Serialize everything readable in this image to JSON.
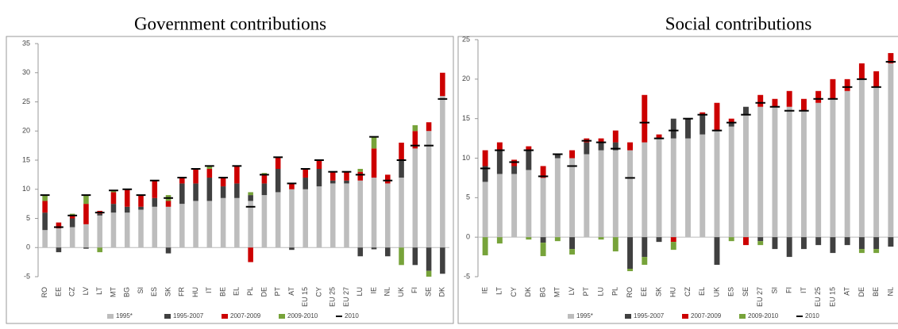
{
  "chart_data": [
    {
      "type": "stacked_bar",
      "title": "Government contributions",
      "categories": [
        "RO",
        "EE",
        "CZ",
        "LV",
        "LT",
        "MT",
        "BG",
        "SI",
        "ES",
        "SK",
        "FR",
        "HU",
        "IT",
        "BE",
        "EL",
        "PL",
        "DE",
        "PT",
        "AT",
        "EU 15",
        "CY",
        "EU 25",
        "EU 27",
        "LU",
        "IE",
        "NL",
        "UK",
        "FI",
        "SE",
        "DK"
      ],
      "series": [
        {
          "name": "1995*",
          "color": "#bdbdbd",
          "values": [
            3,
            3.3,
            3.5,
            4,
            5.5,
            6,
            6,
            6.5,
            7,
            7,
            7.5,
            8,
            8,
            8.5,
            8.5,
            8,
            9,
            9.5,
            10,
            10,
            10.5,
            11,
            11,
            11.5,
            12,
            11,
            12,
            17,
            20,
            26
          ]
        },
        {
          "name": "1995-2007",
          "color": "#404040",
          "values": [
            3,
            -0.8,
            1.5,
            -0.2,
            0.3,
            1.5,
            1,
            0.5,
            1.5,
            -1,
            3.5,
            3,
            4,
            2,
            2.5,
            1,
            2,
            4,
            -0.4,
            2,
            3,
            0.5,
            0.5,
            -1.5,
            -0.3,
            -1.5,
            3,
            -3,
            -4,
            -4.5
          ]
        },
        {
          "name": "2007-2009",
          "color": "#cc0000",
          "values": [
            2,
            1,
            0.5,
            3.5,
            0.5,
            2,
            3,
            2,
            3,
            1,
            1,
            2.5,
            1.5,
            1.5,
            3,
            -2.5,
            1.5,
            2,
            1,
            1.5,
            1.5,
            1.5,
            1.5,
            1.5,
            5,
            1.5,
            3,
            3,
            1.5,
            4
          ]
        },
        {
          "name": "2009-2010",
          "color": "#77a33a",
          "values": [
            1,
            0,
            0.3,
            1.5,
            -0.8,
            0.3,
            0,
            0,
            0,
            1,
            0,
            0,
            0.5,
            0,
            0,
            0.5,
            0.3,
            0,
            0,
            0,
            0,
            0,
            0,
            0.5,
            2,
            0,
            -3,
            1,
            -1,
            0
          ]
        },
        {
          "name": "2010",
          "color": "#000000",
          "kind": "marker",
          "values": [
            9,
            3.5,
            5.5,
            9,
            6,
            9.8,
            10,
            9,
            11.5,
            8.5,
            12,
            13.5,
            14,
            12,
            14,
            7,
            12.5,
            15.5,
            11,
            13.5,
            15,
            13,
            13,
            12.5,
            19,
            11.5,
            15,
            17.5,
            17.5,
            25.5
          ]
        }
      ],
      "ylim": [
        -5,
        35
      ],
      "yticks": [
        -5,
        0,
        5,
        10,
        15,
        20,
        25,
        30,
        35
      ],
      "grid": false
    },
    {
      "type": "stacked_bar",
      "title": "Social contributions",
      "categories": [
        "IE",
        "LT",
        "CY",
        "DK",
        "BG",
        "MT",
        "LV",
        "PT",
        "LU",
        "PL",
        "RO",
        "EE",
        "SK",
        "HU",
        "CZ",
        "EL",
        "UK",
        "ES",
        "SE",
        "EU 27",
        "SI",
        "FI",
        "IT",
        "EU 25",
        "EU 15",
        "AT",
        "DE",
        "BE",
        "NL"
      ],
      "series": [
        {
          "name": "1995*",
          "color": "#bdbdbd",
          "values": [
            7,
            8,
            8,
            8.5,
            7.5,
            10,
            10,
            10.5,
            11,
            11,
            11,
            12,
            12.5,
            12.5,
            12.5,
            13,
            13.5,
            14,
            15.5,
            16.5,
            16.5,
            16.5,
            16,
            17,
            17.5,
            18.5,
            20,
            19,
            22
          ]
        },
        {
          "name": "1995-2007",
          "color": "#404040",
          "values": [
            2,
            3,
            1,
            2.5,
            -0.7,
            0.5,
            -1.5,
            1.5,
            1,
            1,
            -4,
            -2.5,
            -0.6,
            2.5,
            2.5,
            2.5,
            -3.5,
            0.5,
            1,
            -0.5,
            -1.5,
            -2.5,
            -1.5,
            -1,
            -2,
            -1,
            -1.5,
            -1.5,
            -1.2
          ]
        },
        {
          "name": "2007-2009",
          "color": "#cc0000",
          "values": [
            2,
            1,
            0.8,
            0.5,
            1.5,
            0,
            1,
            0.5,
            0.5,
            1.5,
            1,
            6,
            0.5,
            -0.6,
            0,
            0.3,
            3.5,
            0.5,
            -1,
            1.5,
            1,
            2,
            1.5,
            1.5,
            2.5,
            1.5,
            2,
            2,
            1.3
          ]
        },
        {
          "name": "2009-2010",
          "color": "#77a33a",
          "values": [
            -2.3,
            -0.8,
            0,
            -0.3,
            -1.7,
            -0.5,
            -0.7,
            0,
            -0.3,
            -1.8,
            -0.3,
            -1,
            0,
            -1,
            0,
            0,
            0,
            -0.5,
            0,
            -0.5,
            0,
            0,
            0,
            0,
            0,
            0,
            -0.5,
            -0.5,
            0
          ]
        },
        {
          "name": "2010",
          "color": "#000000",
          "kind": "marker",
          "values": [
            8.7,
            11,
            9.5,
            11,
            7.7,
            10.5,
            9,
            12.2,
            12,
            11.2,
            7.5,
            14.5,
            12.5,
            13.5,
            15,
            15.5,
            13.5,
            14.5,
            15.5,
            17,
            16.5,
            16,
            16,
            17.5,
            17.5,
            19,
            20,
            19,
            22.2
          ]
        }
      ],
      "ylim": [
        -5,
        25
      ],
      "yticks": [
        -5,
        0,
        5,
        10,
        15,
        20,
        25
      ],
      "grid": false
    }
  ]
}
